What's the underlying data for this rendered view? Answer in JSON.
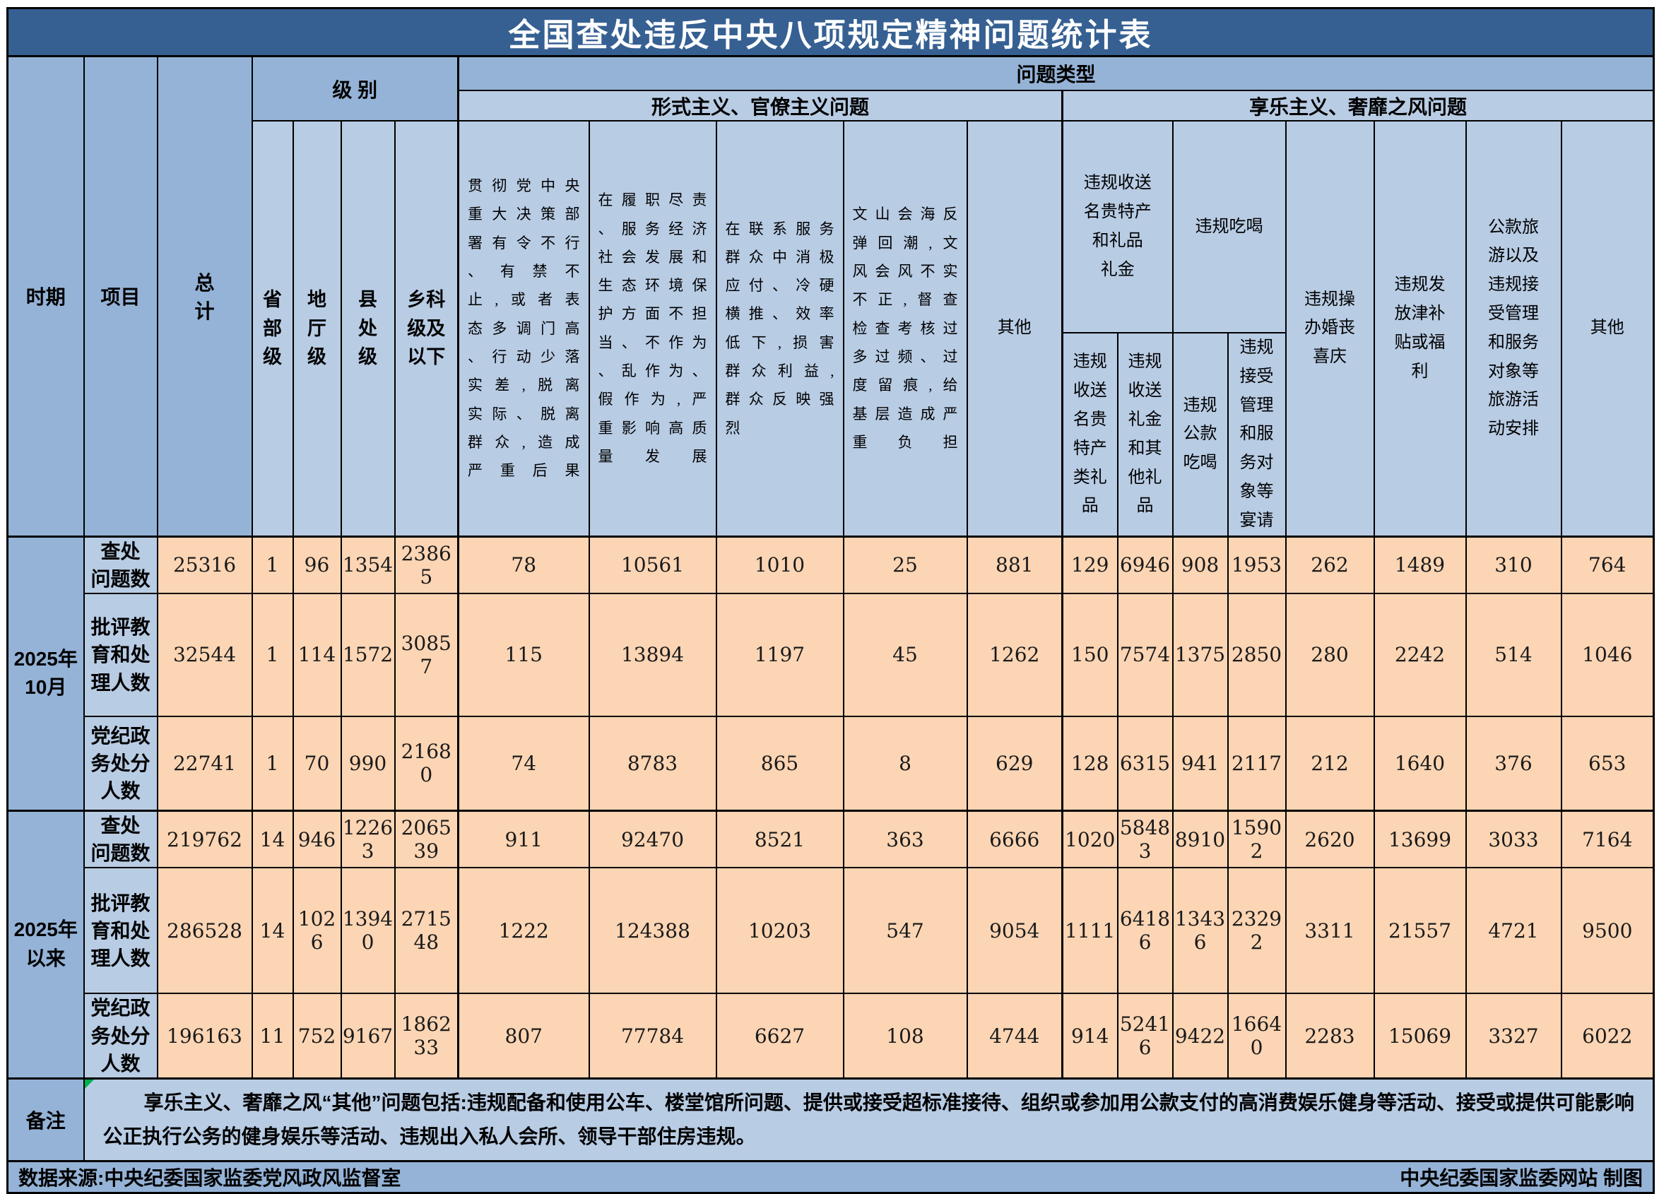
{
  "title": "全国查处违反中央八项规定精神问题统计表",
  "header": {
    "period": "时期",
    "item": "项目",
    "total": "总\n计",
    "level_group": "级 别",
    "problem_type_group": "问题类型",
    "levels": [
      "省\n部\n级",
      "地\n厅\n级",
      "县\n处\n级",
      "乡科\n级及\n以下"
    ],
    "formalism_group": "形式主义、官僚主义问题",
    "hedonism_group": "享乐主义、奢靡之风问题",
    "formalism_cols": [
      "贯彻党中央\n重大决策部\n署有令不行\n、有禁不\n止,或者表\n态多调门高\n、行动少落\n实差,脱离\n实际、脱离\n群众,造成\n严重后果",
      "在履职尽责\n、服务经济\n社会发展和\n生态环境保\n护方面不担\n当、不作为\n、乱作为、\n假作为,严\n重影响高质\n量发展",
      "在联系服务\n群众中消极\n应付、冷硬\n横推、效率\n低下,损害\n群众利益,\n群众反映强\n烈",
      "文山会海反\n弹回潮,文\n风会风不实\n不正,督查\n检查考核过\n多过频、过\n度留痕,给\n基层造成严\n重负担"
    ],
    "formalism_other": "其他",
    "gift_group": "违规收送\n名贵特产\n和礼品\n礼金",
    "gift_cols": [
      "违规\n收送\n名贵\n特产\n类礼\n品",
      "违规\n收送\n礼金\n和其\n他礼\n品"
    ],
    "dining_group": "违规吃喝",
    "dining_cols": [
      "违规\n公款\n吃喝",
      "违规\n接受\n管理\n和服\n务对\n象等\n宴请"
    ],
    "wedding_col": "违规操\n办婚丧\n喜庆",
    "allowance_col": "违规发\n放津补\n贴或福\n利",
    "travel_col": "公款旅\n游以及\n违规接\n受管理\n和服务\n对象等\n旅游活\n动安排",
    "hedonism_other": "其他"
  },
  "row_groups": [
    {
      "period": "2025年\n10月",
      "rows": [
        {
          "label": "查处\n问题数",
          "values": [
            25316,
            1,
            96,
            1354,
            23865,
            78,
            10561,
            1010,
            25,
            881,
            129,
            6946,
            908,
            1953,
            262,
            1489,
            310,
            764
          ]
        },
        {
          "label": "批评教\n育和处\n理人数",
          "values": [
            32544,
            1,
            114,
            1572,
            30857,
            115,
            13894,
            1197,
            45,
            1262,
            150,
            7574,
            1375,
            2850,
            280,
            2242,
            514,
            1046
          ]
        },
        {
          "label": "党纪政\n务处分\n人数",
          "values": [
            22741,
            1,
            70,
            990,
            21680,
            74,
            8783,
            865,
            8,
            629,
            128,
            6315,
            941,
            2117,
            212,
            1640,
            376,
            653
          ]
        }
      ]
    },
    {
      "period": "2025年\n以来",
      "rows": [
        {
          "label": "查处\n问题数",
          "values": [
            219762,
            14,
            946,
            12263,
            206539,
            911,
            92470,
            8521,
            363,
            6666,
            1020,
            58483,
            8910,
            15902,
            2620,
            13699,
            3033,
            7164
          ]
        },
        {
          "label": "批评教\n育和处\n理人数",
          "values": [
            286528,
            14,
            1026,
            13940,
            271548,
            1222,
            124388,
            10203,
            547,
            9054,
            1111,
            64186,
            13436,
            23292,
            3311,
            21557,
            4721,
            9500
          ]
        },
        {
          "label": "党纪政\n务处分\n人数",
          "values": [
            196163,
            11,
            752,
            9167,
            186233,
            807,
            77784,
            6627,
            108,
            4744,
            914,
            52416,
            9422,
            16640,
            2283,
            15069,
            3327,
            6022
          ]
        }
      ]
    }
  ],
  "remark": {
    "label": "备注",
    "text": "享乐主义、奢靡之风“其他”问题包括:违规配备和使用公车、楼堂馆所问题、提供或接受超标准接待、组织或参加用公款支付的高消费娱乐健身等活动、接受或提供可能影响公正执行公务的健身娱乐等活动、违规出入私人会所、领导干部住房违规。"
  },
  "footer": {
    "source": "数据来源:中央纪委国家监委党风政风监督室",
    "credit": "中央纪委国家监委网站 制图"
  },
  "colors": {
    "title_bg": "#366092",
    "header_mid": "#95b3d7",
    "header_light": "#b8cce4",
    "data_bg": "#fcd5b4",
    "border": "#000000",
    "comment_marker": "#00b050"
  }
}
